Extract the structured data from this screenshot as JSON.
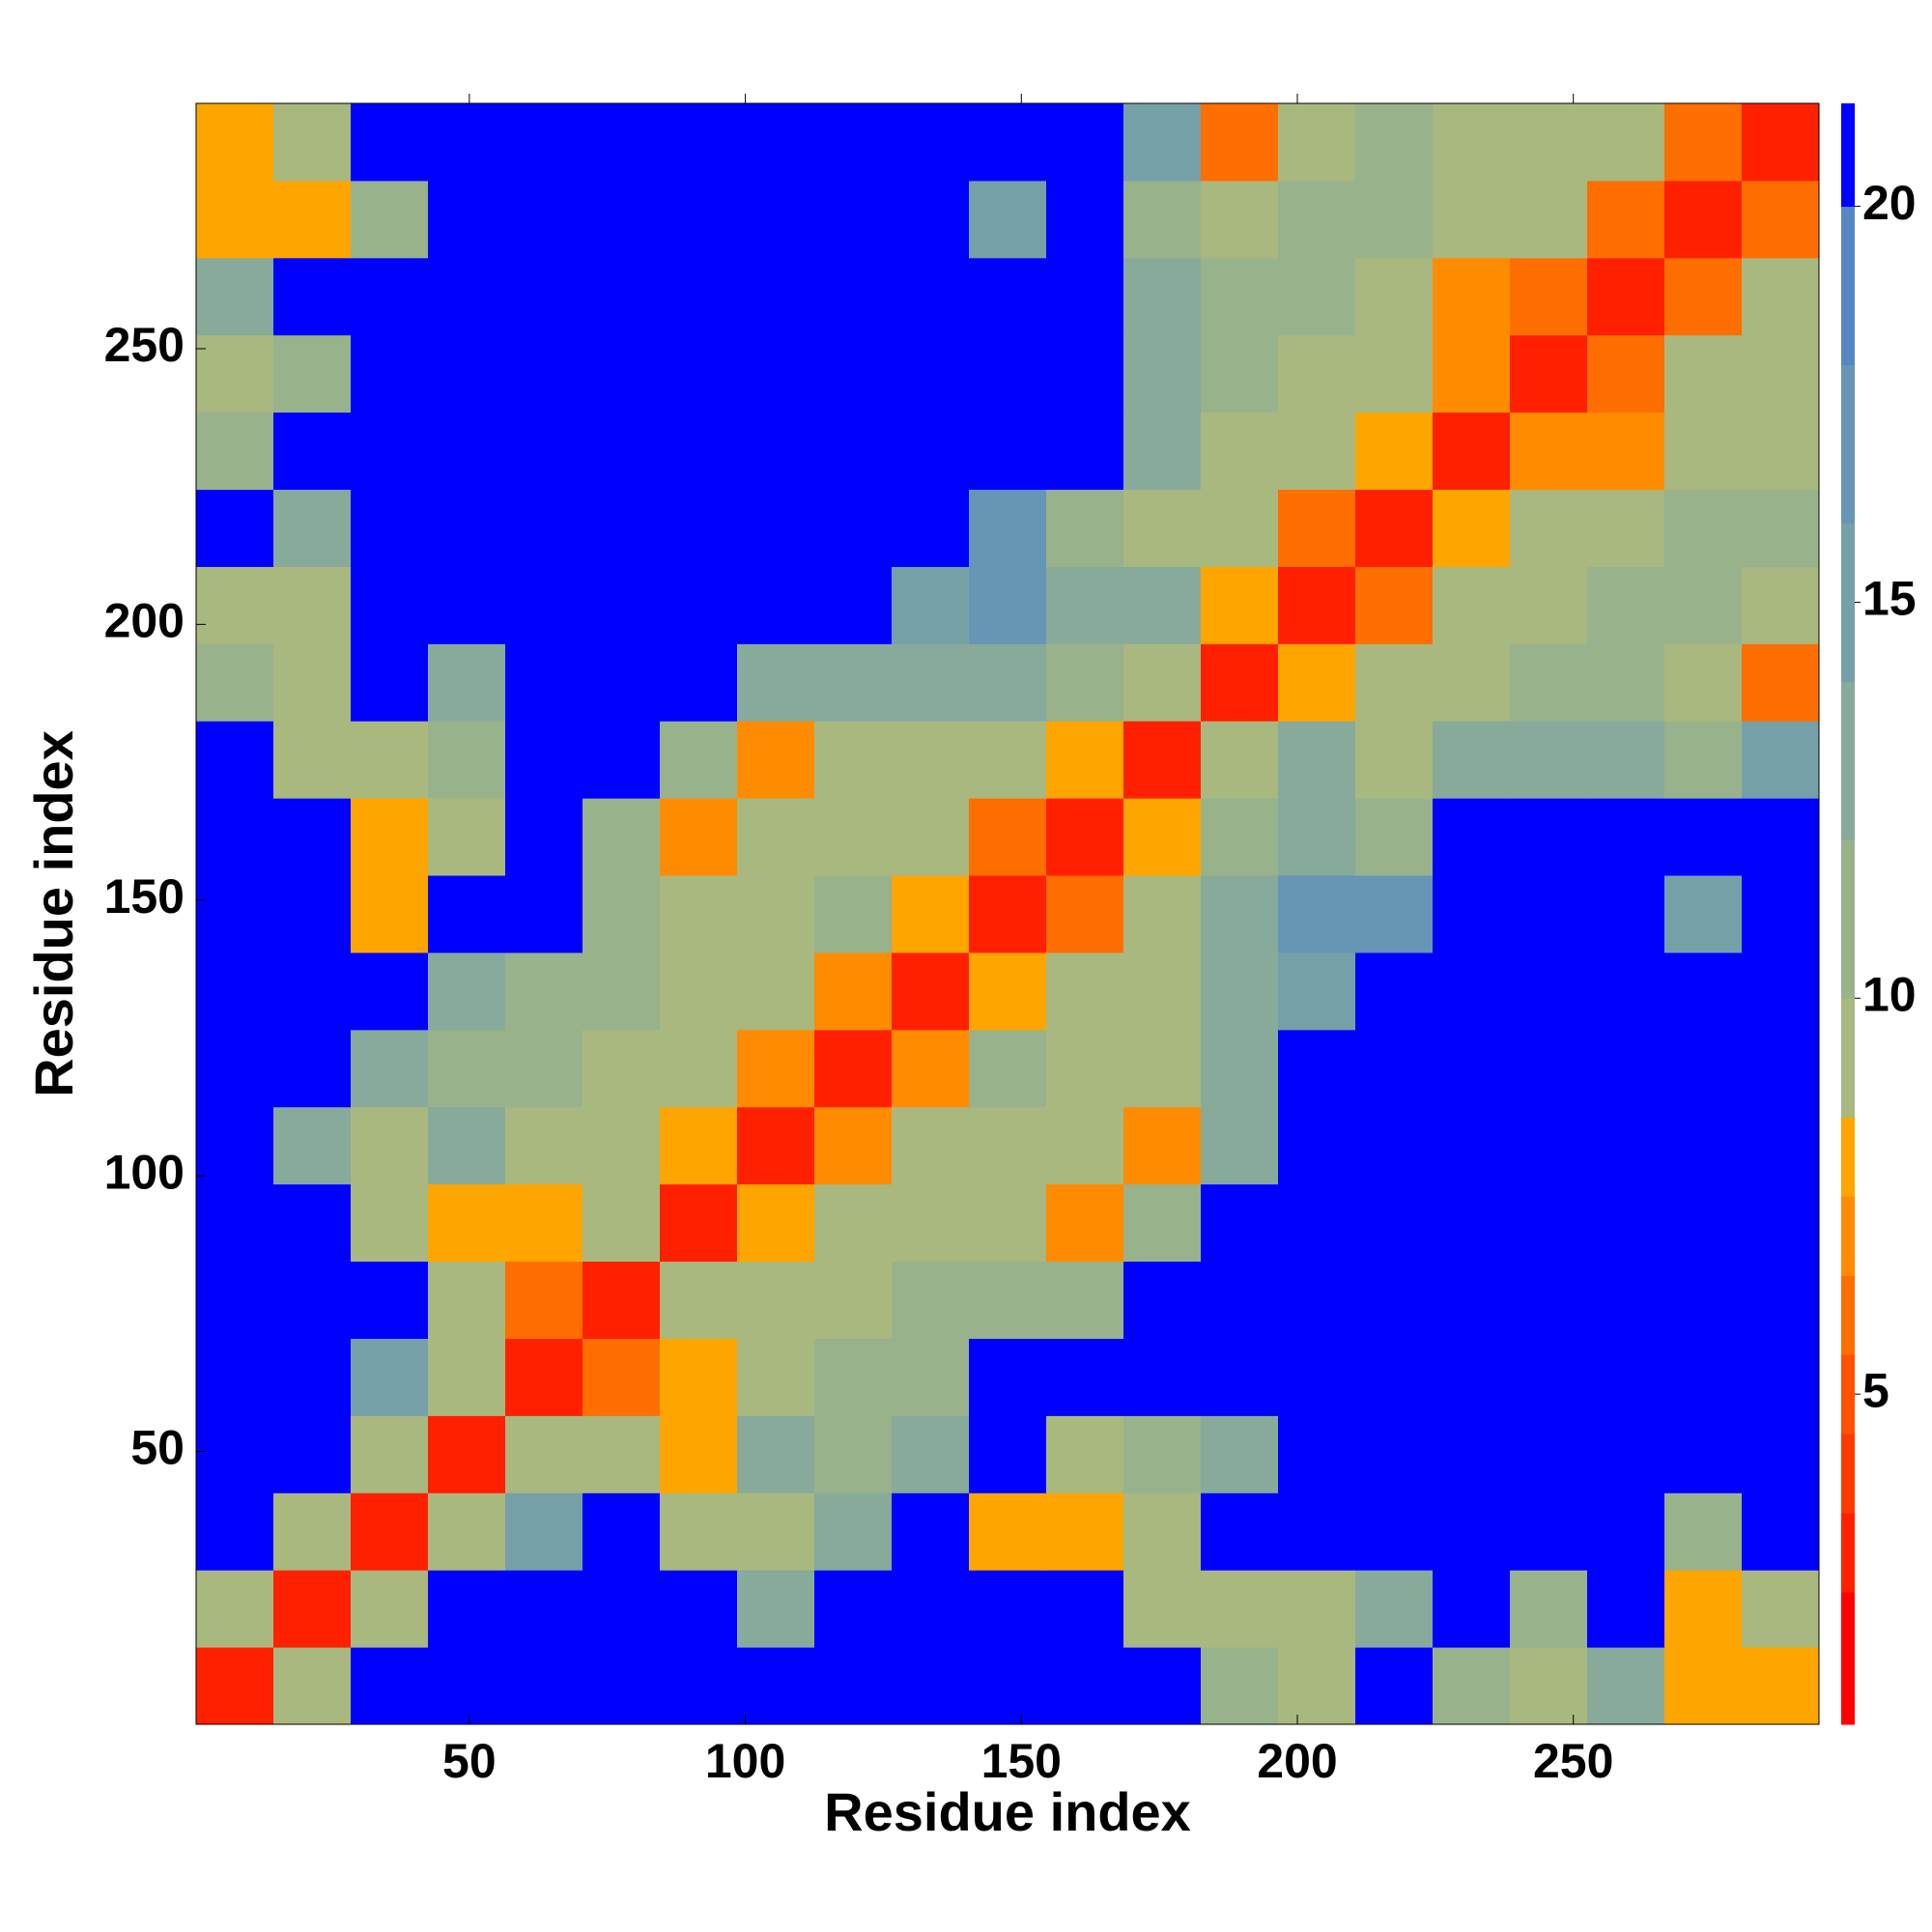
{
  "chart_data": {
    "type": "heatmap",
    "xlabel": "Residue index",
    "ylabel": "Residue index",
    "xbins": [
      0.5,
      14.5,
      28.5,
      42.5,
      56.5,
      70.5,
      84.5,
      98.5,
      112.5,
      126.5,
      140.5,
      154.5,
      168.5,
      182.5,
      196.5,
      210.5,
      224.5,
      238.5,
      252.5,
      266.5,
      280.5,
      294.5
    ],
    "ybins": [
      0.5,
      14.5,
      28.5,
      42.5,
      56.5,
      70.5,
      84.5,
      98.5,
      112.5,
      126.5,
      140.5,
      154.5,
      168.5,
      182.5,
      196.5,
      210.5,
      224.5,
      238.5,
      252.5,
      266.5,
      280.5,
      294.5
    ],
    "xlim": [
      0.5,
      294.5
    ],
    "ylim": [
      0.5,
      294.5
    ],
    "xticks": [
      50,
      100,
      150,
      200,
      250
    ],
    "yticks": [
      50,
      100,
      150,
      200,
      250
    ],
    "z": [
      [
        3.5,
        9,
        21,
        21,
        21,
        21,
        21,
        21,
        21,
        21,
        21,
        21,
        21,
        12,
        9,
        21,
        12,
        10,
        13,
        8,
        8
      ],
      [
        9,
        3.5,
        9,
        21,
        21,
        21,
        21,
        13,
        21,
        21,
        21,
        21,
        9,
        9,
        9,
        13,
        21,
        11,
        21,
        8,
        10
      ],
      [
        21,
        9,
        3.5,
        9,
        16,
        21,
        10,
        10,
        13,
        21,
        8,
        8,
        10,
        21,
        21,
        21,
        21,
        21,
        21,
        12,
        21
      ],
      [
        21,
        21,
        9,
        3.5,
        9,
        10,
        8,
        13,
        12,
        14,
        21,
        9,
        12,
        14,
        21,
        21,
        21,
        21,
        21,
        21,
        21
      ],
      [
        21,
        21,
        16,
        9,
        3.5,
        6,
        8,
        10,
        12,
        12,
        21,
        21,
        21,
        21,
        21,
        21,
        21,
        21,
        21,
        21,
        21
      ],
      [
        21,
        21,
        21,
        10,
        6,
        3.5,
        9,
        10,
        9,
        11,
        11,
        12,
        21,
        21,
        21,
        21,
        21,
        21,
        21,
        21,
        21
      ],
      [
        21,
        21,
        10,
        8,
        8,
        9,
        3.5,
        8,
        10,
        9,
        10,
        7,
        12,
        21,
        21,
        21,
        21,
        21,
        21,
        21,
        21
      ],
      [
        21,
        13,
        10,
        13,
        10,
        10,
        8,
        3.5,
        7,
        9,
        9,
        10,
        7,
        14,
        21,
        21,
        21,
        21,
        21,
        21,
        21
      ],
      [
        21,
        21,
        13,
        12,
        12,
        9,
        10,
        7,
        3.5,
        7,
        11,
        9,
        10,
        13,
        21,
        21,
        21,
        21,
        21,
        21,
        21
      ],
      [
        21,
        21,
        21,
        14,
        12,
        11,
        9,
        9,
        7,
        3.5,
        8,
        10,
        9,
        13,
        16,
        21,
        21,
        21,
        21,
        21,
        21
      ],
      [
        21,
        21,
        8,
        21,
        21,
        11,
        10,
        9,
        11,
        8,
        3.5,
        6,
        9,
        14,
        17,
        17,
        21,
        21,
        21,
        15,
        21
      ],
      [
        21,
        21,
        8,
        9,
        21,
        12,
        7,
        10,
        9,
        10,
        6,
        3.5,
        8,
        12,
        13,
        12,
        21,
        21,
        21,
        21,
        21
      ],
      [
        21,
        9,
        10,
        12,
        21,
        21,
        12,
        7,
        10,
        9,
        9,
        8,
        3.5,
        9,
        13,
        9,
        13,
        14,
        13,
        12,
        15
      ],
      [
        12,
        9,
        21,
        14,
        21,
        21,
        21,
        14,
        13,
        13,
        14,
        12,
        9,
        3.5,
        8,
        10,
        10,
        11,
        12,
        9,
        6
      ],
      [
        9,
        9,
        21,
        21,
        21,
        21,
        21,
        21,
        21,
        16,
        17,
        13,
        13,
        8,
        3.5,
        6,
        10,
        9,
        11,
        12,
        10
      ],
      [
        21,
        13,
        21,
        21,
        21,
        21,
        21,
        21,
        21,
        21,
        17,
        12,
        9,
        10,
        6,
        3.5,
        8,
        9,
        10,
        11,
        12
      ],
      [
        12,
        21,
        21,
        21,
        21,
        21,
        21,
        21,
        21,
        21,
        21,
        21,
        13,
        10,
        10,
        8,
        3.5,
        7,
        7,
        9,
        10
      ],
      [
        10,
        11,
        21,
        21,
        21,
        21,
        21,
        21,
        21,
        21,
        21,
        21,
        14,
        11,
        9,
        9,
        7,
        3.5,
        6,
        10,
        9
      ],
      [
        13,
        21,
        21,
        21,
        21,
        21,
        21,
        21,
        21,
        21,
        21,
        21,
        13,
        12,
        11,
        10,
        7,
        6,
        3.5,
        6,
        9
      ],
      [
        8,
        8,
        12,
        21,
        21,
        21,
        21,
        21,
        21,
        21,
        15,
        21,
        12,
        9,
        12,
        11,
        9,
        10,
        6,
        3.5,
        6
      ],
      [
        8,
        10,
        21,
        21,
        21,
        21,
        21,
        21,
        21,
        21,
        21,
        21,
        15,
        6,
        10,
        12,
        10,
        9,
        9,
        6,
        3.5
      ]
    ],
    "colorbar": {
      "lim": [
        0.83,
        21.3
      ],
      "ticks": [
        5,
        10,
        15,
        20
      ],
      "colorscale": [
        {
          "to": 2.5,
          "color": "#ff0000"
        },
        {
          "to": 3.5,
          "color": "#ff2000"
        },
        {
          "to": 4.5,
          "color": "#ff3a00"
        },
        {
          "to": 5.5,
          "color": "#ff5200"
        },
        {
          "to": 6.5,
          "color": "#ff6e00"
        },
        {
          "to": 7.5,
          "color": "#ff8c00"
        },
        {
          "to": 8.5,
          "color": "#ffa500"
        },
        {
          "to": 10,
          "color": "#a9b87e"
        },
        {
          "to": 12,
          "color": "#98b28c"
        },
        {
          "to": 14,
          "color": "#87aa9a"
        },
        {
          "to": 16,
          "color": "#76a0a8"
        },
        {
          "to": 18,
          "color": "#6695b6"
        },
        {
          "to": 20,
          "color": "#5687c4"
        },
        {
          "to": 21.3,
          "color": "#0000ff"
        }
      ]
    }
  }
}
